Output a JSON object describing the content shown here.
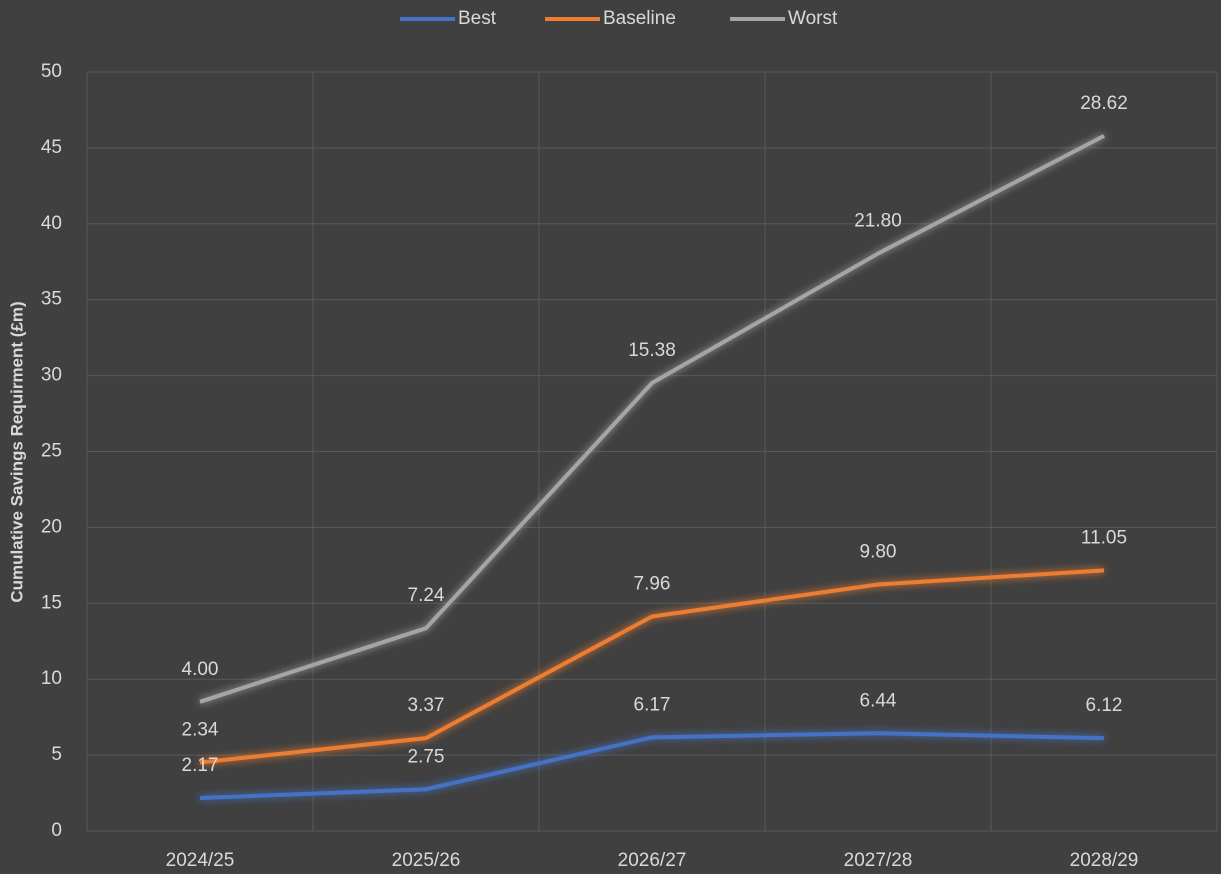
{
  "chart_data": {
    "type": "line",
    "stacked": true,
    "y_axis_label": "Cumulative  Savings Requirment (£m)",
    "categories": [
      "2024/25",
      "2025/26",
      "2026/27",
      "2027/28",
      "2028/29"
    ],
    "series": [
      {
        "name": "Best",
        "color": "#4472c4",
        "values": [
          2.17,
          2.75,
          6.17,
          6.44,
          6.12
        ],
        "value_labels": [
          "2.17",
          "2.75",
          "6.17",
          "6.44",
          "6.12"
        ]
      },
      {
        "name": "Baseline",
        "color": "#ed7d31",
        "values": [
          2.34,
          3.37,
          7.96,
          9.8,
          11.05
        ],
        "value_labels": [
          "2.34",
          "3.37",
          "7.96",
          "9.80",
          "11.05"
        ]
      },
      {
        "name": "Worst",
        "color": "#a5a5a5",
        "values": [
          4.0,
          7.24,
          15.38,
          21.8,
          28.62
        ],
        "value_labels": [
          "4.00",
          "7.24",
          "15.38",
          "21.80",
          "28.62"
        ]
      }
    ],
    "ylim": [
      0,
      50
    ],
    "yticks": [
      0,
      5,
      10,
      15,
      20,
      25,
      30,
      35,
      40,
      45,
      50
    ],
    "grid": true,
    "legend": "top"
  }
}
